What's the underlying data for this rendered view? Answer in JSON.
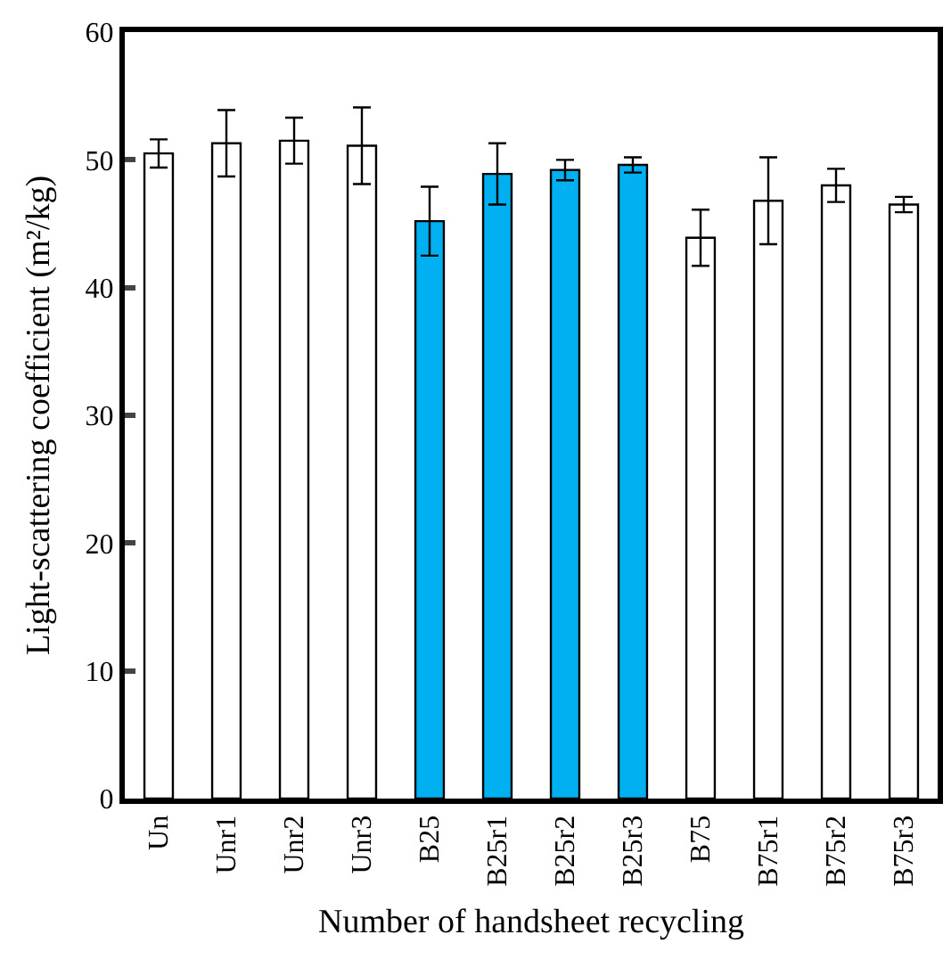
{
  "chart_data": {
    "type": "bar",
    "xlabel": "Number of handsheet recycling",
    "ylabel": "Light-scattering coefficient (m²/kg)",
    "categories": [
      "Un",
      "Unr1",
      "Unr2",
      "Unr3",
      "B25",
      "B25r1",
      "B25r2",
      "B25r3",
      "B75",
      "B75r1",
      "B75r2",
      "B75r3"
    ],
    "values": [
      50.5,
      51.3,
      51.5,
      51.1,
      45.2,
      48.9,
      49.2,
      49.6,
      43.9,
      46.8,
      48.0,
      46.5
    ],
    "errors": [
      1.1,
      2.6,
      1.8,
      3.0,
      2.7,
      2.4,
      0.8,
      0.6,
      2.2,
      3.4,
      1.3,
      0.6
    ],
    "colors": [
      "#ffffff",
      "#ffffff",
      "#ffffff",
      "#ffffff",
      "#00b0f0",
      "#00b0f0",
      "#00b0f0",
      "#00b0f0",
      "#ffffff",
      "#ffffff",
      "#ffffff",
      "#ffffff"
    ],
    "ylim": [
      0,
      60
    ],
    "yticks": [
      0,
      10,
      20,
      30,
      40,
      50,
      60
    ],
    "legend": false
  }
}
